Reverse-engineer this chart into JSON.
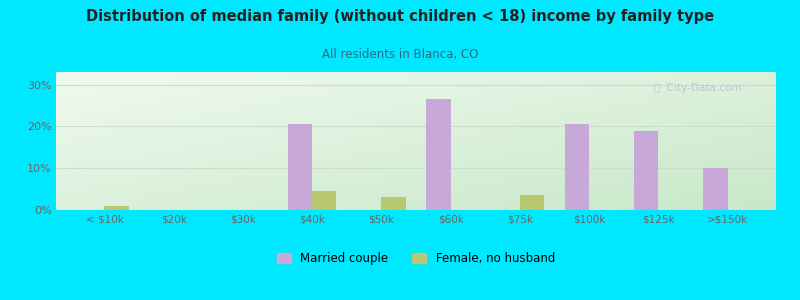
{
  "title": "Distribution of median family (without children < 18) income by family type",
  "subtitle": "All residents in Blanca, CO",
  "categories": [
    "< $10k",
    "$20k",
    "$30k",
    "$40k",
    "$50k",
    "$60k",
    "$75k",
    "$100k",
    "$125k",
    ">$150k"
  ],
  "married_couple": [
    0.0,
    0.0,
    0.0,
    20.5,
    0.0,
    26.5,
    0.0,
    20.5,
    19.0,
    10.0
  ],
  "female_no_husband": [
    1.0,
    0.0,
    0.0,
    4.5,
    3.0,
    0.0,
    3.5,
    0.0,
    0.0,
    0.0
  ],
  "married_color": "#c8a8d8",
  "female_color": "#b8c870",
  "background_outer": "#00e8ff",
  "background_inner_topleft": "#d8eed8",
  "background_inner_topright": "#e8f8f0",
  "background_inner_bottom": "#eef8ee",
  "title_color": "#222222",
  "subtitle_color": "#336688",
  "axis_label_color": "#666666",
  "grid_color": "#ccddcc",
  "ylim": [
    0,
    33
  ],
  "yticks": [
    0,
    10,
    20,
    30
  ],
  "ytick_labels": [
    "0%",
    "10%",
    "20%",
    "30%"
  ],
  "bar_width": 0.35,
  "watermark": "ⓘ  City-Data.com"
}
